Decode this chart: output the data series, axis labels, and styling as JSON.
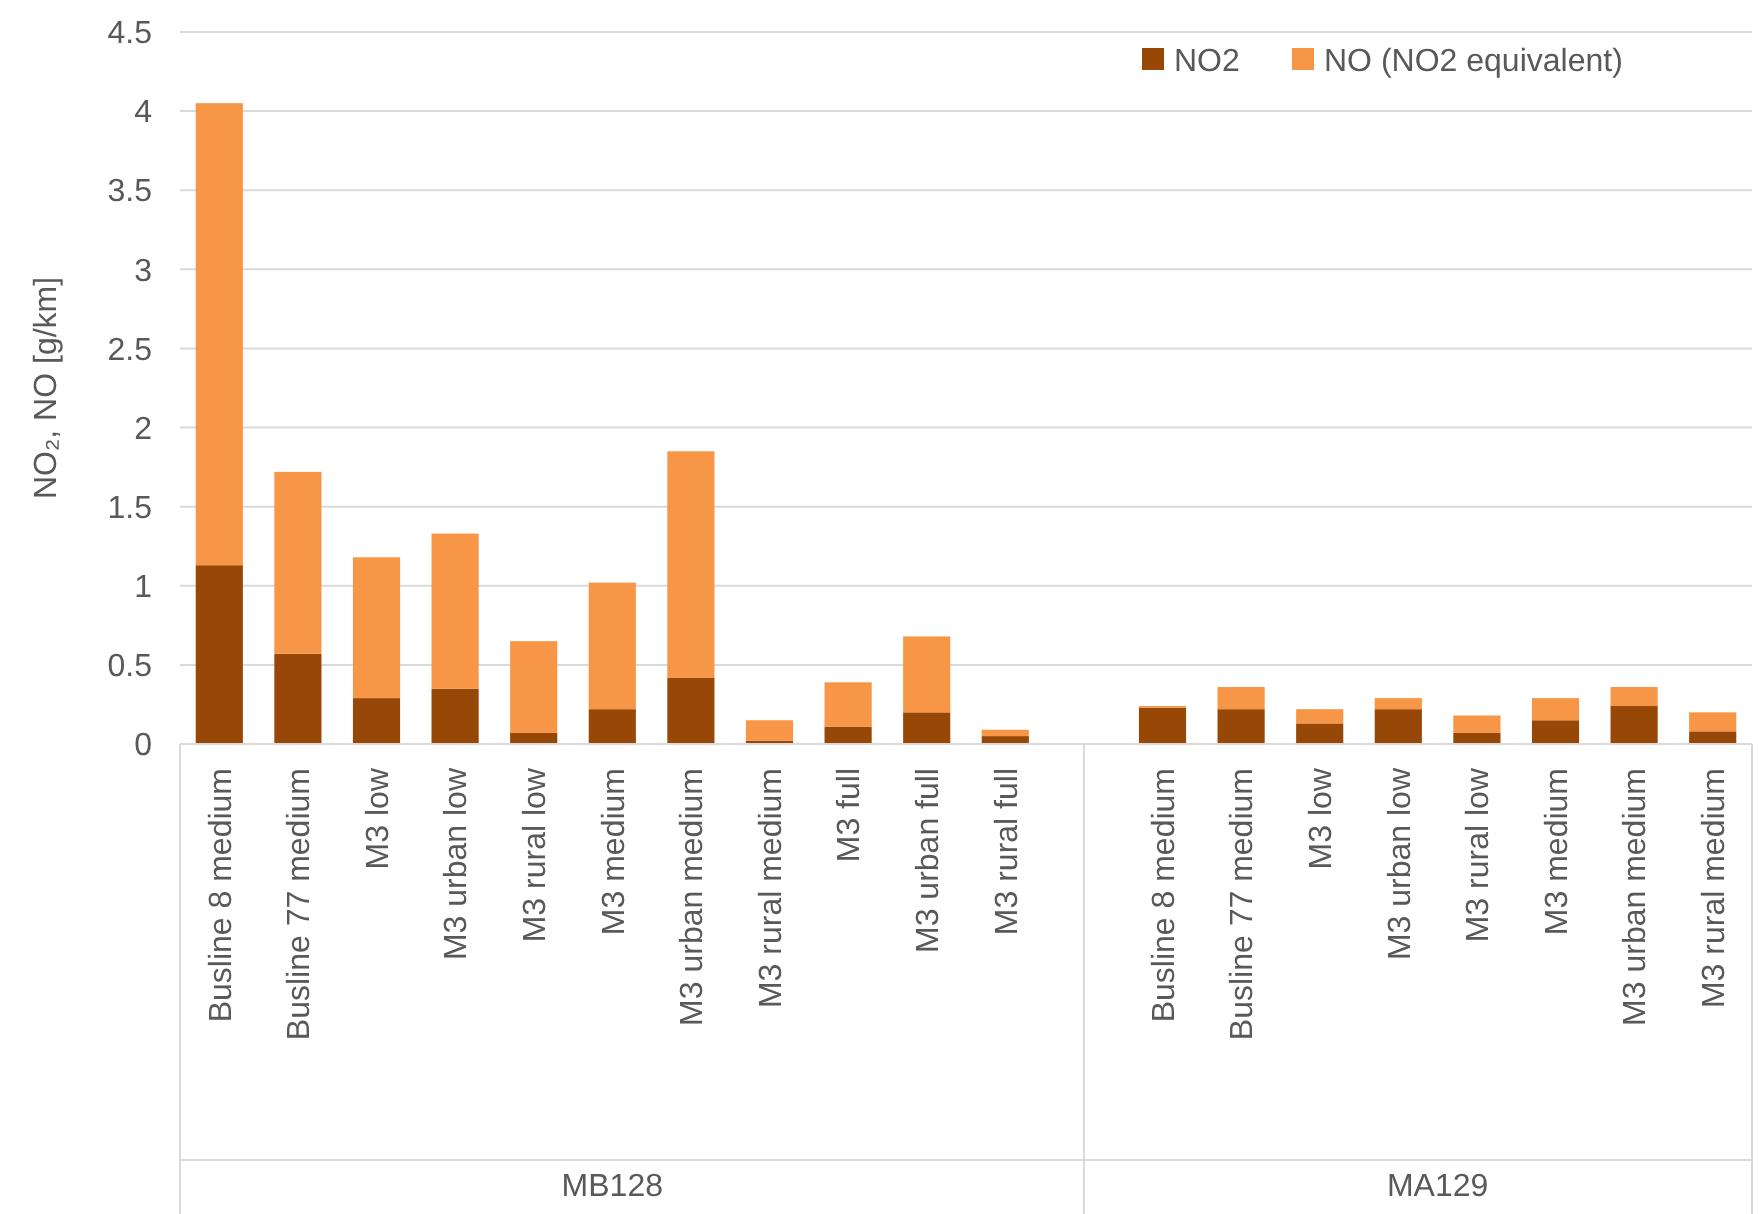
{
  "chart_data": {
    "type": "bar",
    "stacked": true,
    "ylabel": "NO₂, NO [g/km]",
    "categories": [
      "Busline 8 medium",
      "Busline 77 medium",
      "M3 low",
      "M3 urban low",
      "M3 rural low",
      "M3 medium",
      "M3 urban medium",
      "M3 rural medium",
      "M3 full",
      "M3 urban full",
      "M3 rural full",
      null,
      "Busline 8 medium",
      "Busline 77 medium",
      "M3 low",
      "M3 urban low",
      "M3 rural low",
      "M3 medium",
      "M3 urban medium",
      "M3 rural medium"
    ],
    "series": [
      {
        "name": "NO2",
        "color": "#974706",
        "values": [
          1.13,
          0.57,
          0.29,
          0.35,
          0.07,
          0.22,
          0.42,
          0.02,
          0.11,
          0.2,
          0.05,
          null,
          0.23,
          0.22,
          0.13,
          0.22,
          0.07,
          0.15,
          0.24,
          0.08
        ]
      },
      {
        "name": "NO (NO2 equivalent)",
        "color": "#f79646",
        "values": [
          2.92,
          1.15,
          0.89,
          0.98,
          0.58,
          0.8,
          1.43,
          0.13,
          0.28,
          0.48,
          0.04,
          null,
          0.01,
          0.14,
          0.09,
          0.07,
          0.11,
          0.14,
          0.12,
          0.12
        ]
      }
    ],
    "ylim": [
      0,
      4.5
    ],
    "yticks": [
      0,
      0.5,
      1,
      1.5,
      2,
      2.5,
      3,
      3.5,
      4,
      4.5
    ],
    "grid": "y",
    "legend": "top right",
    "annotations": [
      "MB128",
      "MA129"
    ]
  }
}
